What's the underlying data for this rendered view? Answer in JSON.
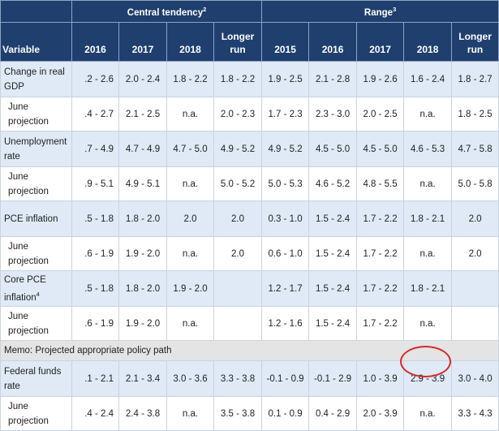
{
  "header": {
    "central_tendency": "Central tendency",
    "central_tendency_note": "2",
    "range": "Range",
    "range_note": "3",
    "variable": "Variable",
    "ct_columns": [
      "2016",
      "2017",
      "2018",
      "Longer run"
    ],
    "range_columns": [
      "2015",
      "2016",
      "2017",
      "2018",
      "Longer run"
    ]
  },
  "rows": [
    {
      "label": "Change in real GDP",
      "type": "main",
      "values": [
        ".2 - 2.6",
        "2.0 - 2.4",
        "1.8 - 2.2",
        "1.8 - 2.2",
        "1.9 - 2.5",
        "2.1 - 2.8",
        "1.9 - 2.6",
        "1.6 - 2.4",
        "1.8 - 2.7"
      ]
    },
    {
      "label": "June projection",
      "type": "proj",
      "values": [
        ".4 - 2.7",
        "2.1 - 2.5",
        "n.a.",
        "2.0 - 2.3",
        "1.7 - 2.3",
        "2.3 - 3.0",
        "2.0 - 2.5",
        "n.a.",
        "1.8 - 2.5"
      ]
    },
    {
      "label": "Unemployment rate",
      "type": "main",
      "values": [
        ".7 - 4.9",
        "4.7 - 4.9",
        "4.7 - 5.0",
        "4.9 - 5.2",
        "4.9 - 5.2",
        "4.5 - 5.0",
        "4.5 - 5.0",
        "4.6 - 5.3",
        "4.7 - 5.8"
      ]
    },
    {
      "label": "June projection",
      "type": "proj",
      "values": [
        ".9 - 5.1",
        "4.9 - 5.1",
        "n.a.",
        "5.0 - 5.2",
        "5.0 - 5.3",
        "4.6 - 5.2",
        "4.8 - 5.5",
        "n.a.",
        "5.0 - 5.8"
      ]
    },
    {
      "label": "PCE inflation",
      "type": "main",
      "values": [
        ".5 - 1.8",
        "1.8 - 2.0",
        "2.0",
        "2.0",
        "0.3 - 1.0",
        "1.5 - 2.4",
        "1.7 - 2.2",
        "1.8 - 2.1",
        "2.0"
      ]
    },
    {
      "label": "June projection",
      "type": "proj",
      "values": [
        ".6 - 1.9",
        "1.9 - 2.0",
        "n.a.",
        "2.0",
        "0.6 - 1.0",
        "1.5 - 2.4",
        "1.7 - 2.2",
        "n.a.",
        "2.0"
      ]
    },
    {
      "label": "Core PCE inflation",
      "note": "4",
      "type": "main",
      "values": [
        ".5 - 1.8",
        "1.8 - 2.0",
        "1.9 - 2.0",
        "",
        "1.2 - 1.7",
        "1.5 - 2.4",
        "1.7 - 2.2",
        "1.8 - 2.1",
        ""
      ]
    },
    {
      "label": "June projection",
      "type": "proj",
      "values": [
        ".6 - 1.9",
        "1.9 - 2.0",
        "n.a.",
        "",
        "1.2 - 1.6",
        "1.5 - 2.4",
        "1.7 - 2.2",
        "n.a.",
        ""
      ]
    }
  ],
  "memo": "Memo: Projected appropriate policy path",
  "policy_rows": [
    {
      "label": "Federal funds rate",
      "type": "main",
      "values": [
        ".1 - 2.1",
        "2.1 - 3.4",
        "3.0 - 3.6",
        "3.3 - 3.8",
        "-0.1 - 0.9",
        "-0.1 - 2.9",
        "1.0 - 3.9",
        "2.9 - 3.9",
        "3.0 - 4.0"
      ]
    },
    {
      "label": "June projection",
      "type": "proj",
      "values": [
        ".4 - 2.4",
        "2.4 - 3.8",
        "n.a.",
        "3.5 - 3.8",
        "0.1 - 0.9",
        "0.4 - 2.9",
        "2.0 - 3.9",
        "n.a.",
        "3.3 - 4.3"
      ]
    }
  ],
  "highlight": {
    "color": "#d32a2a"
  }
}
